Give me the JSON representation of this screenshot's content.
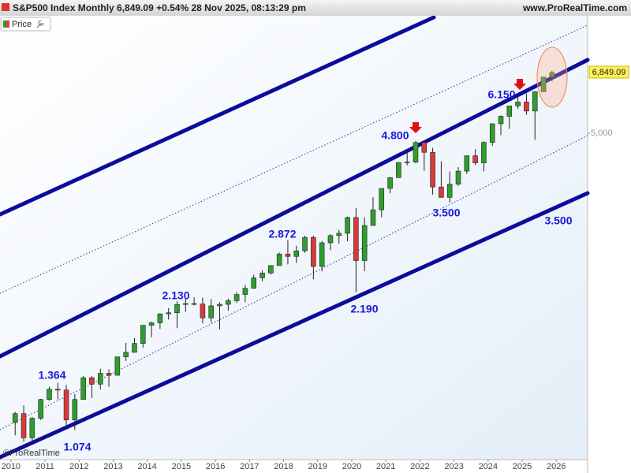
{
  "chart_data": {
    "type": "candlestick",
    "title": "S&P500 Index Monthly 6,849.09 +0.54% 28 Nov 2025, 08:13:29 pm",
    "site": "www.ProRealTime.com",
    "legend": "Price",
    "price_label": "6,849.09",
    "watermark": "©ProRealTime",
    "log_scale": true,
    "up_color": "#2e9e2e",
    "down_color": "#d83a3a",
    "annotation_color": "#1a1ad6",
    "annotations": [
      "1.364",
      "1.074",
      "2.130",
      "2.872",
      "2.190",
      "4.800",
      "3.500",
      "6.150",
      "3.500"
    ],
    "xlim": [
      2009.68,
      2026.92
    ],
    "xticks": [
      2010,
      2011,
      2012,
      2013,
      2014,
      2015,
      2016,
      2017,
      2018,
      2019,
      2020,
      2021,
      2022,
      2023,
      2024,
      2025,
      2026
    ],
    "ylim": [
      921,
      9196
    ],
    "yticks": [
      {
        "value": 5000,
        "label": "5,000"
      }
    ],
    "x": [
      2010.125,
      2010.375,
      2010.625,
      2010.875,
      2011.125,
      2011.375,
      2011.625,
      2011.875,
      2012.125,
      2012.375,
      2012.625,
      2012.875,
      2013.125,
      2013.375,
      2013.625,
      2013.875,
      2014.125,
      2014.375,
      2014.625,
      2014.875,
      2015.125,
      2015.375,
      2015.625,
      2015.875,
      2016.125,
      2016.375,
      2016.625,
      2016.875,
      2017.125,
      2017.375,
      2017.625,
      2017.875,
      2018.125,
      2018.375,
      2018.625,
      2018.875,
      2019.125,
      2019.375,
      2019.625,
      2019.875,
      2020.125,
      2020.375,
      2020.625,
      2020.875,
      2021.125,
      2021.375,
      2021.625,
      2021.875,
      2022.125,
      2022.375,
      2022.625,
      2022.875,
      2023.125,
      2023.375,
      2023.625,
      2023.875,
      2024.125,
      2024.375,
      2024.625,
      2024.875,
      2025.125,
      2025.375,
      2025.625,
      2025.875
    ],
    "open": [
      1116,
      1169,
      1031,
      1141,
      1258,
      1326,
      1321,
      1131,
      1258,
      1408,
      1362,
      1441,
      1426,
      1569,
      1606,
      1682,
      1848,
      1872,
      1960,
      1972,
      2059,
      2068,
      2063,
      1920,
      2044,
      2060,
      2099,
      2168,
      2239,
      2363,
      2423,
      2519,
      2674,
      2641,
      2718,
      2914,
      2507,
      2834,
      2942,
      2977,
      3231,
      2585,
      3100,
      3363,
      3756,
      3973,
      4298,
      4308,
      4766,
      4530,
      3785,
      3586,
      3840,
      4109,
      4450,
      4288,
      4770,
      5254,
      5460,
      5762,
      5882,
      5612,
      6205,
      6688
    ],
    "high": [
      1180,
      1220,
      1149,
      1262,
      1344,
      1371,
      1356,
      1293,
      1420,
      1422,
      1475,
      1470,
      1570,
      1687,
      1730,
      1849,
      1884,
      1968,
      2019,
      2093,
      2119,
      2135,
      2133,
      2116,
      2082,
      2121,
      2194,
      2278,
      2401,
      2454,
      2520,
      2695,
      2873,
      2791,
      2941,
      2940,
      2860,
      2964,
      3028,
      3247,
      3394,
      3233,
      3588,
      3760,
      3983,
      4298,
      4546,
      4808,
      4818,
      4637,
      4325,
      4101,
      4195,
      4458,
      4607,
      4794,
      5265,
      5488,
      5767,
      6099,
      6147,
      6215,
      6700,
      6920
    ],
    "low": [
      1044,
      1011,
      1011,
      1131,
      1249,
      1258,
      1075,
      1074,
      1258,
      1267,
      1325,
      1343,
      1426,
      1536,
      1604,
      1646,
      1737,
      1814,
      1904,
      1820,
      1981,
      2048,
      1867,
      1872,
      1810,
      1992,
      2075,
      2084,
      2233,
      2322,
      2405,
      2520,
      2533,
      2553,
      2691,
      2347,
      2444,
      2729,
      2822,
      2856,
      2192,
      2447,
      3115,
      3234,
      3662,
      3978,
      4233,
      4279,
      4115,
      3637,
      3584,
      3492,
      3809,
      4049,
      4238,
      4104,
      4683,
      4954,
      5120,
      5674,
      5505,
      4835,
      6200,
      6550
    ],
    "close": [
      1169,
      1031,
      1141,
      1258,
      1326,
      1321,
      1131,
      1258,
      1408,
      1362,
      1441,
      1426,
      1569,
      1606,
      1682,
      1848,
      1872,
      1960,
      1972,
      2059,
      2068,
      2063,
      1920,
      2044,
      2060,
      2099,
      2168,
      2239,
      2363,
      2423,
      2519,
      2674,
      2641,
      2718,
      2914,
      2507,
      2834,
      2942,
      2977,
      3231,
      2585,
      3100,
      3363,
      3756,
      3973,
      4298,
      4308,
      4766,
      4530,
      3785,
      3586,
      3840,
      4109,
      4450,
      4288,
      4770,
      5254,
      5460,
      5762,
      5882,
      5612,
      6205,
      6688,
      6849
    ]
  }
}
